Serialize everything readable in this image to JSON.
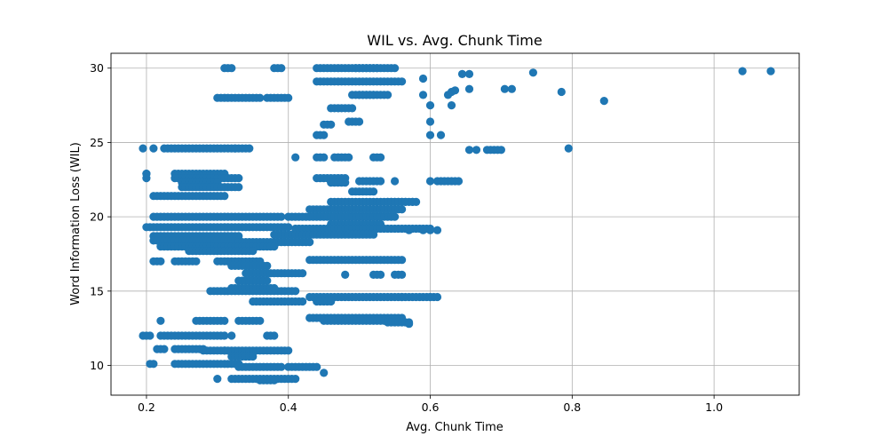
{
  "chart_data": {
    "type": "scatter",
    "title": "WIL vs. Avg. Chunk Time",
    "xlabel": "Avg. Chunk Time",
    "ylabel": "Word Information Loss (WIL)",
    "xlim": [
      0.15,
      1.12
    ],
    "ylim": [
      8,
      31
    ],
    "xticks": [
      0.2,
      0.4,
      0.6,
      0.8,
      1.0
    ],
    "xtick_labels": [
      "0.2",
      "0.4",
      "0.6",
      "0.8",
      "1.0"
    ],
    "yticks": [
      10,
      15,
      20,
      25,
      30
    ],
    "ytick_labels": [
      "10",
      "15",
      "20",
      "25",
      "30"
    ],
    "grid": true,
    "legend": "none",
    "point_color": "#1f77b4",
    "clusters": [
      {
        "xs": [
          0.31,
          0.32
        ],
        "y": 30.0
      },
      {
        "xs": [
          0.38,
          0.39
        ],
        "y": 30.0
      },
      {
        "xs": [
          0.44,
          0.55
        ],
        "y": 30.0,
        "step": 0.005
      },
      {
        "xs": [
          0.495,
          0.525
        ],
        "y": 30.0,
        "step": 0.005
      },
      {
        "xs": [
          0.3,
          0.36
        ],
        "y": 28.0,
        "step": 0.005
      },
      {
        "xs": [
          0.37,
          0.4
        ],
        "y": 28.0,
        "step": 0.005
      },
      {
        "xs": [
          0.44,
          0.56
        ],
        "y": 29.1,
        "step": 0.005
      },
      {
        "xs": [
          0.46,
          0.49
        ],
        "y": 27.3,
        "step": 0.005
      },
      {
        "xs": [
          0.45,
          0.46
        ],
        "y": 26.2,
        "step": 0.005
      },
      {
        "xs": [
          0.49,
          0.52
        ],
        "y": 28.2,
        "step": 0.005
      },
      {
        "xs": [
          0.5,
          0.54
        ],
        "y": 28.2,
        "step": 0.005
      },
      {
        "xs": [
          0.485,
          0.5
        ],
        "y": 26.4,
        "step": 0.005
      },
      {
        "xs": [
          0.44,
          0.45
        ],
        "y": 25.5
      },
      {
        "xs": [
          0.195,
          0.195
        ],
        "y": 24.6
      },
      {
        "xs": [
          0.21,
          0.21
        ],
        "y": 24.6
      },
      {
        "xs": [
          0.225,
          0.34
        ],
        "y": 24.6,
        "step": 0.005
      },
      {
        "xs": [
          0.41,
          0.41
        ],
        "y": 24.0
      },
      {
        "xs": [
          0.44,
          0.45
        ],
        "y": 24.0
      },
      {
        "xs": [
          0.465,
          0.485
        ],
        "y": 24.0,
        "step": 0.005
      },
      {
        "xs": [
          0.52,
          0.53
        ],
        "y": 24.0
      },
      {
        "xs": [
          0.2,
          0.2
        ],
        "y": 22.9
      },
      {
        "xs": [
          0.2,
          0.2
        ],
        "y": 22.6
      },
      {
        "xs": [
          0.24,
          0.31
        ],
        "y": 22.9,
        "step": 0.005
      },
      {
        "xs": [
          0.24,
          0.33
        ],
        "y": 22.6,
        "step": 0.005
      },
      {
        "xs": [
          0.25,
          0.3
        ],
        "y": 22.3,
        "step": 0.005
      },
      {
        "xs": [
          0.25,
          0.33
        ],
        "y": 22.0,
        "step": 0.005
      },
      {
        "xs": [
          0.21,
          0.31
        ],
        "y": 21.4,
        "step": 0.005
      },
      {
        "xs": [
          0.44,
          0.48
        ],
        "y": 22.6,
        "step": 0.005
      },
      {
        "xs": [
          0.46,
          0.48
        ],
        "y": 22.3,
        "step": 0.005
      },
      {
        "xs": [
          0.5,
          0.53
        ],
        "y": 22.4,
        "step": 0.005
      },
      {
        "xs": [
          0.55,
          0.55
        ],
        "y": 22.4
      },
      {
        "xs": [
          0.6,
          0.6
        ],
        "y": 22.4
      },
      {
        "xs": [
          0.61,
          0.64
        ],
        "y": 22.4,
        "step": 0.005
      },
      {
        "xs": [
          0.49,
          0.52
        ],
        "y": 21.7,
        "step": 0.005
      },
      {
        "xs": [
          0.54,
          0.58
        ],
        "y": 21.0,
        "step": 0.005
      },
      {
        "xs": [
          0.21,
          0.39
        ],
        "y": 20.0,
        "step": 0.005
      },
      {
        "xs": [
          0.4,
          0.55
        ],
        "y": 20.0,
        "step": 0.005
      },
      {
        "xs": [
          0.43,
          0.56
        ],
        "y": 20.5,
        "step": 0.005
      },
      {
        "xs": [
          0.46,
          0.56
        ],
        "y": 21.0,
        "step": 0.005
      },
      {
        "xs": [
          0.46,
          0.53
        ],
        "y": 19.5,
        "step": 0.005
      },
      {
        "xs": [
          0.2,
          0.4
        ],
        "y": 19.3,
        "step": 0.005
      },
      {
        "xs": [
          0.41,
          0.6
        ],
        "y": 19.2,
        "step": 0.005
      },
      {
        "xs": [
          0.21,
          0.33
        ],
        "y": 18.7,
        "step": 0.005
      },
      {
        "xs": [
          0.38,
          0.52
        ],
        "y": 18.8,
        "step": 0.005
      },
      {
        "xs": [
          0.21,
          0.33
        ],
        "y": 18.4,
        "step": 0.005
      },
      {
        "xs": [
          0.33,
          0.43
        ],
        "y": 18.3,
        "step": 0.005
      },
      {
        "xs": [
          0.22,
          0.38
        ],
        "y": 18.0,
        "step": 0.005
      },
      {
        "xs": [
          0.26,
          0.35
        ],
        "y": 17.7,
        "step": 0.005
      },
      {
        "xs": [
          0.21,
          0.22
        ],
        "y": 17.0
      },
      {
        "xs": [
          0.24,
          0.27
        ],
        "y": 17.0,
        "step": 0.005
      },
      {
        "xs": [
          0.3,
          0.36
        ],
        "y": 17.0,
        "step": 0.005
      },
      {
        "xs": [
          0.43,
          0.56
        ],
        "y": 17.1,
        "step": 0.005
      },
      {
        "xs": [
          0.32,
          0.37
        ],
        "y": 16.7,
        "step": 0.005
      },
      {
        "xs": [
          0.34,
          0.42
        ],
        "y": 16.2,
        "step": 0.005
      },
      {
        "xs": [
          0.48,
          0.48
        ],
        "y": 16.1
      },
      {
        "xs": [
          0.52,
          0.53
        ],
        "y": 16.1
      },
      {
        "xs": [
          0.55,
          0.56
        ],
        "y": 16.1
      },
      {
        "xs": [
          0.33,
          0.37
        ],
        "y": 15.7,
        "step": 0.005
      },
      {
        "xs": [
          0.29,
          0.41
        ],
        "y": 15.0,
        "step": 0.005
      },
      {
        "xs": [
          0.32,
          0.38
        ],
        "y": 15.2,
        "step": 0.005
      },
      {
        "xs": [
          0.35,
          0.42
        ],
        "y": 14.3,
        "step": 0.005
      },
      {
        "xs": [
          0.43,
          0.61
        ],
        "y": 14.6,
        "step": 0.005
      },
      {
        "xs": [
          0.44,
          0.46
        ],
        "y": 14.3,
        "step": 0.005
      },
      {
        "xs": [
          0.33,
          0.36
        ],
        "y": 13.0,
        "step": 0.005
      },
      {
        "xs": [
          0.27,
          0.31
        ],
        "y": 13.0,
        "step": 0.005
      },
      {
        "xs": [
          0.22,
          0.22
        ],
        "y": 13.0
      },
      {
        "xs": [
          0.43,
          0.56
        ],
        "y": 13.2,
        "step": 0.005
      },
      {
        "xs": [
          0.45,
          0.54
        ],
        "y": 13.0,
        "step": 0.005
      },
      {
        "xs": [
          0.54,
          0.57
        ],
        "y": 12.9,
        "step": 0.005
      },
      {
        "xs": [
          0.195,
          0.205
        ],
        "y": 12.0,
        "step": 0.005
      },
      {
        "xs": [
          0.22,
          0.31
        ],
        "y": 12.0,
        "step": 0.005
      },
      {
        "xs": [
          0.32,
          0.32
        ],
        "y": 12.0
      },
      {
        "xs": [
          0.37,
          0.38
        ],
        "y": 12.0
      },
      {
        "xs": [
          0.215,
          0.225
        ],
        "y": 11.1,
        "step": 0.005
      },
      {
        "xs": [
          0.24,
          0.28
        ],
        "y": 11.1,
        "step": 0.005
      },
      {
        "xs": [
          0.28,
          0.31
        ],
        "y": 11.0,
        "step": 0.005
      },
      {
        "xs": [
          0.31,
          0.4
        ],
        "y": 11.0,
        "step": 0.005
      },
      {
        "xs": [
          0.32,
          0.35
        ],
        "y": 10.6,
        "step": 0.005
      },
      {
        "xs": [
          0.205,
          0.21
        ],
        "y": 10.1,
        "step": 0.005
      },
      {
        "xs": [
          0.24,
          0.33
        ],
        "y": 10.1,
        "step": 0.005
      },
      {
        "xs": [
          0.33,
          0.39
        ],
        "y": 9.9,
        "step": 0.005
      },
      {
        "xs": [
          0.4,
          0.44
        ],
        "y": 9.9,
        "step": 0.005
      },
      {
        "xs": [
          0.3,
          0.3
        ],
        "y": 9.1
      },
      {
        "xs": [
          0.32,
          0.41
        ],
        "y": 9.1,
        "step": 0.005
      },
      {
        "xs": [
          0.36,
          0.38
        ],
        "y": 9.0,
        "step": 0.005
      },
      {
        "xs": [
          0.45,
          0.45
        ],
        "y": 9.5
      }
    ],
    "points": [
      [
        0.325,
        24.6
      ],
      [
        0.345,
        24.6
      ],
      [
        0.2,
        22.9
      ],
      [
        0.59,
        28.2
      ],
      [
        0.59,
        29.3
      ],
      [
        0.6,
        27.5
      ],
      [
        0.6,
        26.4
      ],
      [
        0.6,
        25.5
      ],
      [
        0.615,
        25.5
      ],
      [
        0.625,
        28.2
      ],
      [
        0.63,
        28.4
      ],
      [
        0.635,
        28.5
      ],
      [
        0.63,
        27.5
      ],
      [
        0.645,
        29.6
      ],
      [
        0.655,
        29.6
      ],
      [
        0.655,
        28.6
      ],
      [
        0.655,
        24.5
      ],
      [
        0.665,
        24.5
      ],
      [
        0.68,
        24.5
      ],
      [
        0.685,
        24.5
      ],
      [
        0.69,
        24.5
      ],
      [
        0.695,
        24.5
      ],
      [
        0.7,
        24.5
      ],
      [
        0.705,
        28.6
      ],
      [
        0.715,
        28.6
      ],
      [
        0.745,
        29.7
      ],
      [
        0.785,
        28.4
      ],
      [
        0.795,
        24.6
      ],
      [
        0.845,
        27.8
      ],
      [
        1.04,
        29.8
      ],
      [
        1.08,
        29.8
      ],
      [
        0.565,
        21.0
      ],
      [
        0.575,
        21.0
      ],
      [
        0.57,
        19.1
      ],
      [
        0.59,
        19.1
      ],
      [
        0.6,
        19.1
      ],
      [
        0.61,
        19.1
      ],
      [
        0.57,
        12.8
      ],
      [
        0.56,
        14.6
      ],
      [
        0.6,
        14.6
      ]
    ]
  }
}
